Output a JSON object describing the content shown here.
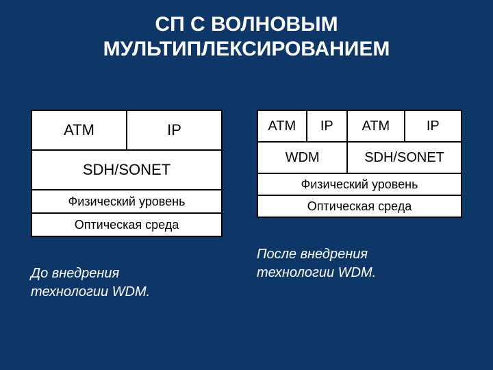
{
  "colors": {
    "background": "#0e3768",
    "title": "#ffffff",
    "caption": "#ffffff",
    "cell_bg": "#ffffff",
    "cell_text": "#000000",
    "border": "#000000"
  },
  "typography": {
    "title_fontsize": 30,
    "cell_fontsize_large": 22,
    "cell_fontsize_med": 20,
    "cell_fontsize_small": 18,
    "caption_fontsize": 20
  },
  "title_line1": "СП С ВОЛНОВЫМ",
  "title_line2": "МУЛЬТИПЛЕКСИРОВАНИЕМ",
  "left": {
    "caption_line1": "До внедрения",
    "caption_line2": "технологии WDM.",
    "row1": {
      "c1": "ATM",
      "c2": "IP"
    },
    "row2": "SDH/SONET",
    "row3": "Физический уровень",
    "row4": "Оптическая среда",
    "col_widths_pct": [
      50,
      50
    ]
  },
  "right": {
    "caption_line1": "После внедрения",
    "caption_line2": "технологии WDM.",
    "row1": {
      "c1": "ATM",
      "c2": "IP",
      "c3": "ATM",
      "c4": "IP"
    },
    "row2": {
      "c1": "WDM",
      "c2": "SDH/SONET"
    },
    "row3": "Физический уровень",
    "row4": "Оптическая среда",
    "col_widths_pct": [
      24,
      20,
      28,
      28
    ]
  }
}
